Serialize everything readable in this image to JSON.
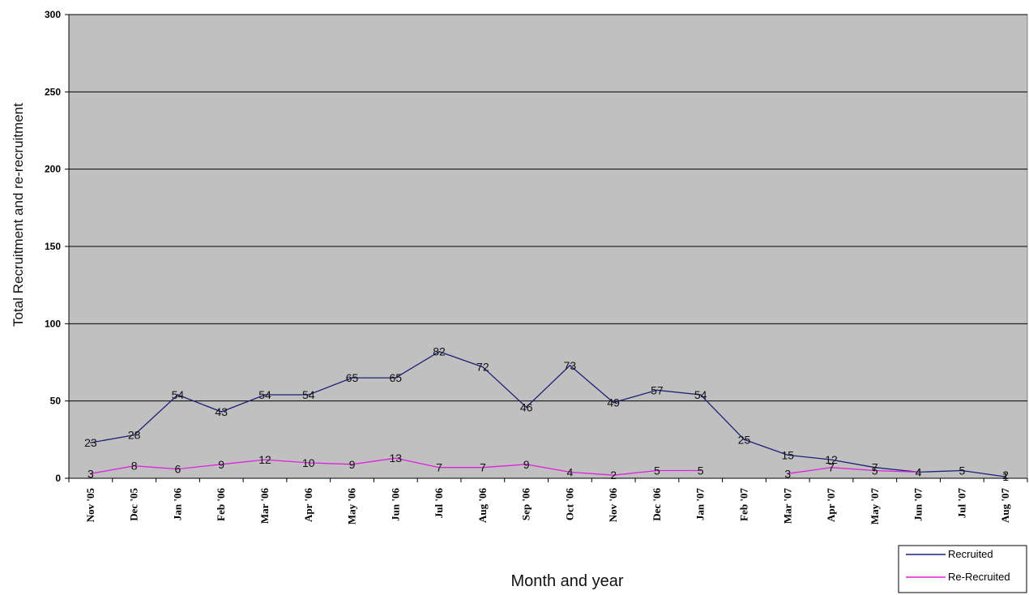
{
  "chart_data": {
    "type": "line",
    "title": "",
    "xlabel": "Month and year",
    "ylabel": "Total Recruitment and re-recruitment",
    "ylim": [
      0,
      300
    ],
    "yticks": [
      "0",
      "50",
      "100",
      "150",
      "200",
      "250",
      "300"
    ],
    "grid": true,
    "legend_position": "bottom-right",
    "plot_background": "#c0c0c0",
    "categories": [
      "Nov '05",
      "Dec '05",
      "Jan '06",
      "Feb '06",
      "Mar '06",
      "Apr '06",
      "May '06",
      "Jun '06",
      "Jul '06",
      "Aug '06",
      "Sep '06",
      "Oct '06",
      "Nov '06",
      "Dec '06",
      "Jan '07",
      "Feb '07",
      "Mar '07",
      "Apr '07",
      "May '07",
      "Jun '07",
      "Jul '07",
      "Aug '07"
    ],
    "series": [
      {
        "name": "Recruited",
        "color": "#1f1f7a",
        "values": [
          23,
          28,
          54,
          43,
          54,
          54,
          65,
          65,
          82,
          72,
          46,
          73,
          49,
          57,
          54,
          25,
          15,
          12,
          7,
          4,
          5,
          1
        ],
        "labels": [
          "23",
          "28",
          "54",
          "43",
          "54",
          "54",
          "65",
          "65",
          "82",
          "72",
          "46",
          "73",
          "49",
          "57",
          "54",
          "25",
          "15",
          "12",
          "7",
          "4",
          "5",
          "1"
        ]
      },
      {
        "name": "Re-Recruited",
        "color": "#e020e0",
        "values": [
          3,
          8,
          6,
          9,
          12,
          10,
          9,
          13,
          7,
          7,
          9,
          4,
          2,
          5,
          5,
          null,
          3,
          7,
          5,
          4,
          null,
          2
        ],
        "labels": [
          "3",
          "8",
          "6",
          "9",
          "12",
          "10",
          "9",
          "13",
          "7",
          "7",
          "9",
          "4",
          "2",
          "5",
          "5",
          "",
          "3",
          "7",
          "5",
          "4",
          "",
          "2"
        ]
      }
    ]
  }
}
